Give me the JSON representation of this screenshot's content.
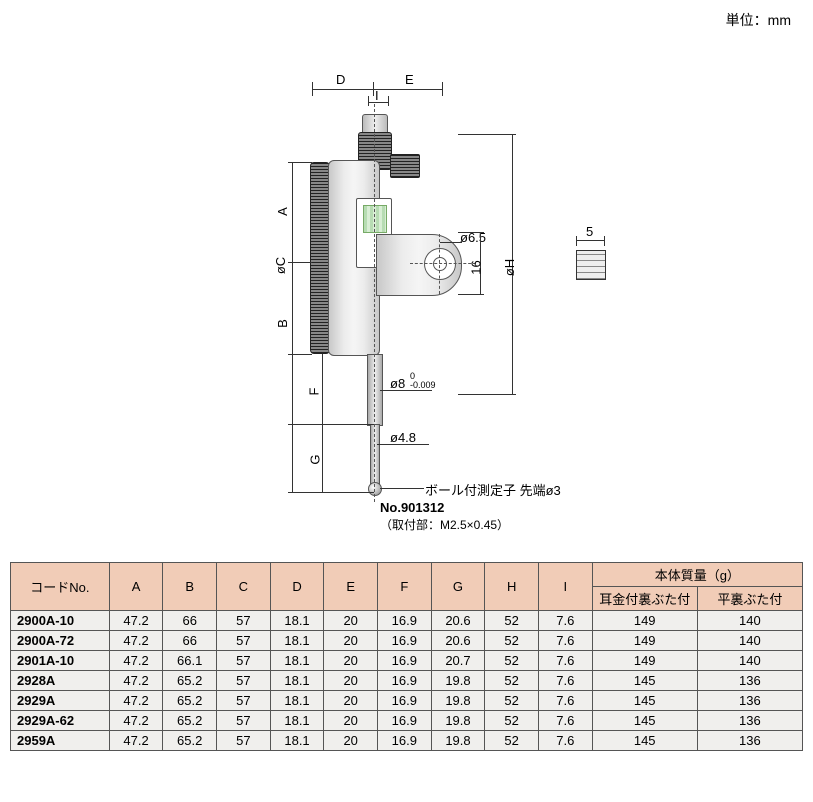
{
  "unit_label": "単位：mm",
  "diagram": {
    "dims": {
      "A": "A",
      "B": "B",
      "C": "øC",
      "D": "D",
      "E": "E",
      "F": "F",
      "G": "G",
      "H": "øH",
      "I": "I"
    },
    "phi65": "ø6.5",
    "dim16": "16",
    "dim5": "5",
    "phi8": "ø8",
    "phi8_tol": "0\n-0.009",
    "phi48": "ø4.8",
    "contact_label": "ボール付測定子  先端ø3",
    "partno": "No.901312",
    "mount_spec": "（取付部：M2.5×0.45）"
  },
  "table": {
    "header_code": "コードNo.",
    "header_mass": "本体質量（g）",
    "header_mass_lug": "耳金付裏ぶた付",
    "header_mass_flat": "平裏ぶた付",
    "cols": [
      "A",
      "B",
      "C",
      "D",
      "E",
      "F",
      "G",
      "H",
      "I"
    ],
    "rows": [
      {
        "code": "2900A-10",
        "v": [
          "47.2",
          "66",
          "57",
          "18.1",
          "20",
          "16.9",
          "20.6",
          "52",
          "7.6"
        ],
        "m": [
          "149",
          "140"
        ]
      },
      {
        "code": "2900A-72",
        "v": [
          "47.2",
          "66",
          "57",
          "18.1",
          "20",
          "16.9",
          "20.6",
          "52",
          "7.6"
        ],
        "m": [
          "149",
          "140"
        ]
      },
      {
        "code": "2901A-10",
        "v": [
          "47.2",
          "66.1",
          "57",
          "18.1",
          "20",
          "16.9",
          "20.7",
          "52",
          "7.6"
        ],
        "m": [
          "149",
          "140"
        ]
      },
      {
        "code": "2928A",
        "v": [
          "47.2",
          "65.2",
          "57",
          "18.1",
          "20",
          "16.9",
          "19.8",
          "52",
          "7.6"
        ],
        "m": [
          "145",
          "136"
        ]
      },
      {
        "code": "2929A",
        "v": [
          "47.2",
          "65.2",
          "57",
          "18.1",
          "20",
          "16.9",
          "19.8",
          "52",
          "7.6"
        ],
        "m": [
          "145",
          "136"
        ]
      },
      {
        "code": "2929A-62",
        "v": [
          "47.2",
          "65.2",
          "57",
          "18.1",
          "20",
          "16.9",
          "19.8",
          "52",
          "7.6"
        ],
        "m": [
          "145",
          "136"
        ]
      },
      {
        "code": "2959A",
        "v": [
          "47.2",
          "65.2",
          "57",
          "18.1",
          "20",
          "16.9",
          "19.8",
          "52",
          "7.6"
        ],
        "m": [
          "145",
          "136"
        ]
      }
    ]
  }
}
